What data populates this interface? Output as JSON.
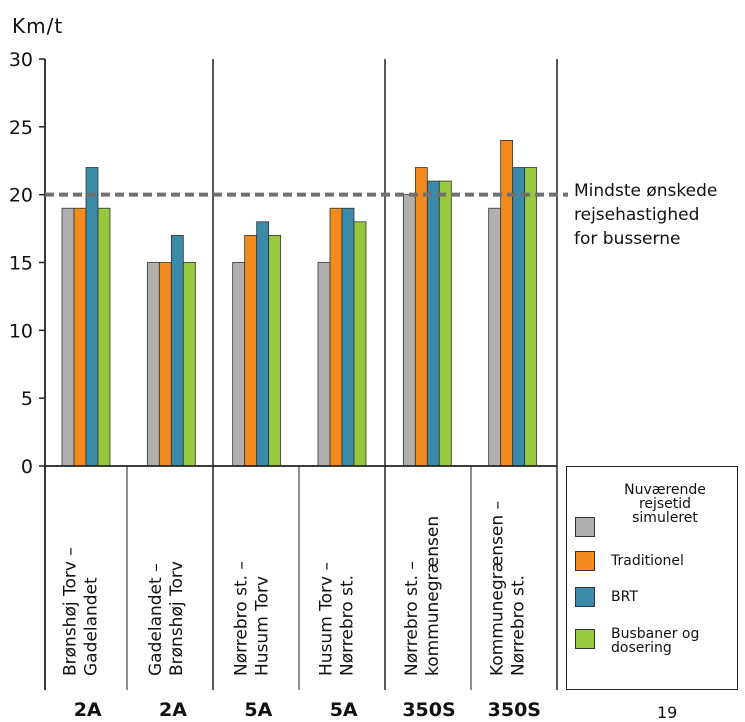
{
  "y_axis_label": "Km/t",
  "page_number": "19",
  "threshold_note": "Mindste ønskede\nrejsehastighed\nfor busserne",
  "legend": [
    {
      "label": "Nuværende rejsetid simuleret",
      "color": "#b0b0b0"
    },
    {
      "label": "Traditionel",
      "color": "#f28a1e"
    },
    {
      "label": "BRT",
      "color": "#3a8aa8"
    },
    {
      "label": "Busbaner og dosering",
      "color": "#96c93d"
    }
  ],
  "colors": {
    "axis": "#222222",
    "threshold_line": "#707070"
  },
  "chart_data": {
    "type": "bar",
    "ylabel": "Km/t",
    "ylim": [
      0,
      30
    ],
    "yticks": [
      0,
      5,
      10,
      15,
      20,
      25,
      30
    ],
    "threshold": 20,
    "categories": [
      {
        "label": "Brønshøj Torv – Gadelandet",
        "line": "2A"
      },
      {
        "label": "Gadelandet – Brønshøj Torv",
        "line": "2A"
      },
      {
        "label": "Nørrebro st. – Husum Torv",
        "line": "5A"
      },
      {
        "label": "Husum Torv – Nørrebro st.",
        "line": "5A"
      },
      {
        "label": "Nørrebro st. – kommunegrænsen",
        "line": "350S"
      },
      {
        "label": "Kommunegrænsen – Nørrebro st.",
        "line": "350S"
      }
    ],
    "series": [
      {
        "name": "Nuværende rejsetid simuleret",
        "values": [
          19,
          15,
          15,
          15,
          20,
          19
        ]
      },
      {
        "name": "Traditionel",
        "values": [
          19,
          15,
          17,
          19,
          22,
          24
        ]
      },
      {
        "name": "BRT",
        "values": [
          22,
          17,
          18,
          19,
          21,
          22
        ]
      },
      {
        "name": "Busbaner og dosering",
        "values": [
          19,
          15,
          17,
          18,
          21,
          22
        ]
      }
    ]
  }
}
